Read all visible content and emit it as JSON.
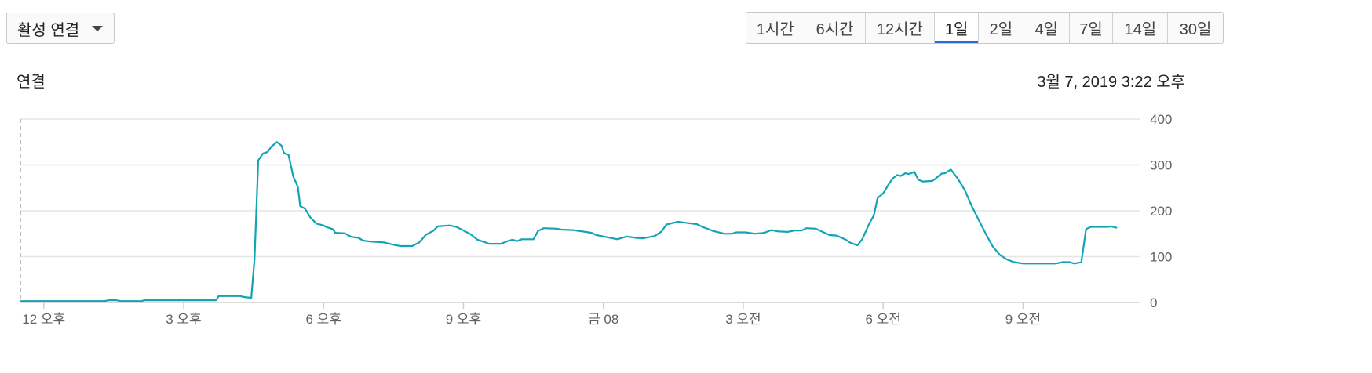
{
  "metric_selector": {
    "label": "활성 연결"
  },
  "time_ranges": {
    "options": [
      "1시간",
      "6시간",
      "12시간",
      "1일",
      "2일",
      "4일",
      "7일",
      "14일",
      "30일"
    ],
    "selected": "1일"
  },
  "chart_header": {
    "title": "연결",
    "timestamp": "3월 7, 2019 3:22 오후"
  },
  "colors": {
    "series": "#12a4b4",
    "grid": "#e6e6e6",
    "accent": "#2a6bd4"
  },
  "chart_data": {
    "type": "line",
    "title": "",
    "xlabel": "",
    "ylabel": "",
    "ylim": [
      0,
      400
    ],
    "yticks": [
      0,
      100,
      200,
      300,
      400
    ],
    "x_unit": "hours since first x tick",
    "xlim": [
      -0.5,
      23.5
    ],
    "xticks": [
      {
        "x": 0,
        "label": "12 오후"
      },
      {
        "x": 3,
        "label": "3 오후"
      },
      {
        "x": 6,
        "label": "6 오후"
      },
      {
        "x": 9,
        "label": "9 오후"
      },
      {
        "x": 12,
        "label": "금 08"
      },
      {
        "x": 15,
        "label": "3 오전"
      },
      {
        "x": 18,
        "label": "6 오전"
      },
      {
        "x": 21,
        "label": "9 오전"
      }
    ],
    "grid": true,
    "series": [
      {
        "name": "",
        "points": [
          [
            -0.5,
            3
          ],
          [
            1.3,
            3
          ],
          [
            1.4,
            5
          ],
          [
            1.55,
            5
          ],
          [
            1.65,
            3
          ],
          [
            2.1,
            3
          ],
          [
            2.15,
            5
          ],
          [
            3.7,
            5
          ],
          [
            3.75,
            14
          ],
          [
            4.2,
            14
          ],
          [
            4.3,
            12
          ],
          [
            4.45,
            10
          ],
          [
            4.52,
            95
          ],
          [
            4.6,
            310
          ],
          [
            4.7,
            325
          ],
          [
            4.8,
            328
          ],
          [
            4.88,
            340
          ],
          [
            5.0,
            350
          ],
          [
            5.1,
            342
          ],
          [
            5.15,
            326
          ],
          [
            5.25,
            322
          ],
          [
            5.35,
            275
          ],
          [
            5.45,
            252
          ],
          [
            5.5,
            210
          ],
          [
            5.6,
            205
          ],
          [
            5.72,
            185
          ],
          [
            5.85,
            172
          ],
          [
            6.0,
            168
          ],
          [
            6.05,
            165
          ],
          [
            6.2,
            160
          ],
          [
            6.25,
            152
          ],
          [
            6.45,
            151
          ],
          [
            6.6,
            143
          ],
          [
            6.75,
            141
          ],
          [
            6.85,
            135
          ],
          [
            7.0,
            133
          ],
          [
            7.3,
            131
          ],
          [
            7.5,
            126
          ],
          [
            7.65,
            123
          ],
          [
            7.9,
            123
          ],
          [
            8.05,
            131
          ],
          [
            8.2,
            148
          ],
          [
            8.35,
            156
          ],
          [
            8.45,
            166
          ],
          [
            8.7,
            168
          ],
          [
            8.85,
            165
          ],
          [
            9.0,
            157
          ],
          [
            9.15,
            149
          ],
          [
            9.3,
            137
          ],
          [
            9.45,
            132
          ],
          [
            9.55,
            128
          ],
          [
            9.8,
            128
          ],
          [
            9.95,
            134
          ],
          [
            10.05,
            137
          ],
          [
            10.15,
            134
          ],
          [
            10.25,
            138
          ],
          [
            10.5,
            138
          ],
          [
            10.6,
            156
          ],
          [
            10.72,
            162
          ],
          [
            11.0,
            161
          ],
          [
            11.1,
            159
          ],
          [
            11.35,
            158
          ],
          [
            11.55,
            155
          ],
          [
            11.75,
            152
          ],
          [
            11.85,
            147
          ],
          [
            12.1,
            142
          ],
          [
            12.3,
            138
          ],
          [
            12.5,
            144
          ],
          [
            12.7,
            141
          ],
          [
            12.85,
            140
          ],
          [
            13.1,
            145
          ],
          [
            13.25,
            155
          ],
          [
            13.35,
            170
          ],
          [
            13.6,
            176
          ],
          [
            13.75,
            174
          ],
          [
            14.0,
            171
          ],
          [
            14.15,
            164
          ],
          [
            14.35,
            156
          ],
          [
            14.6,
            150
          ],
          [
            14.75,
            150
          ],
          [
            14.85,
            153
          ],
          [
            15.05,
            153
          ],
          [
            15.25,
            150
          ],
          [
            15.45,
            152
          ],
          [
            15.6,
            158
          ],
          [
            15.75,
            155
          ],
          [
            15.95,
            154
          ],
          [
            16.1,
            157
          ],
          [
            16.25,
            157
          ],
          [
            16.35,
            162
          ],
          [
            16.55,
            161
          ],
          [
            16.7,
            154
          ],
          [
            16.85,
            147
          ],
          [
            17.0,
            146
          ],
          [
            17.2,
            137
          ],
          [
            17.3,
            130
          ],
          [
            17.45,
            125
          ],
          [
            17.55,
            138
          ],
          [
            17.7,
            172
          ],
          [
            17.8,
            190
          ],
          [
            17.88,
            228
          ],
          [
            18.0,
            238
          ],
          [
            18.1,
            255
          ],
          [
            18.2,
            270
          ],
          [
            18.3,
            278
          ],
          [
            18.38,
            276
          ],
          [
            18.48,
            282
          ],
          [
            18.55,
            280
          ],
          [
            18.67,
            285
          ],
          [
            18.75,
            268
          ],
          [
            18.85,
            264
          ],
          [
            19.05,
            265
          ],
          [
            19.12,
            270
          ],
          [
            19.25,
            281
          ],
          [
            19.33,
            282
          ],
          [
            19.45,
            290
          ],
          [
            19.6,
            270
          ],
          [
            19.75,
            245
          ],
          [
            19.9,
            210
          ],
          [
            20.05,
            180
          ],
          [
            20.2,
            150
          ],
          [
            20.35,
            122
          ],
          [
            20.5,
            104
          ],
          [
            20.65,
            94
          ],
          [
            20.8,
            88
          ],
          [
            21.0,
            85
          ],
          [
            21.7,
            85
          ],
          [
            21.85,
            88
          ],
          [
            22.0,
            88
          ],
          [
            22.1,
            85
          ],
          [
            22.25,
            88
          ],
          [
            22.35,
            160
          ],
          [
            22.45,
            165
          ],
          [
            22.8,
            165
          ],
          [
            22.9,
            166
          ],
          [
            23.0,
            163
          ]
        ]
      }
    ]
  }
}
